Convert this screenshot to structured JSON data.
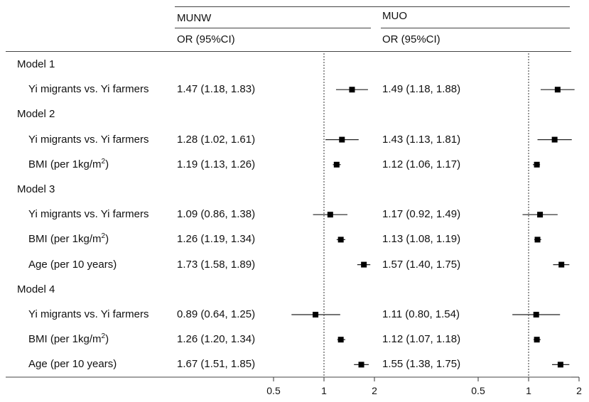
{
  "header": {
    "col1_title": "MUNW",
    "col2_title": "MUO",
    "col1_subtitle": "OR (95%CI)",
    "col2_subtitle": "OR (95%CI)"
  },
  "rows": [
    {
      "label": "Model 1",
      "type": "model"
    },
    {
      "label": "Yi migrants vs. Yi farmers",
      "type": "var",
      "or1": "1.47 (1.18, 1.83)",
      "or2": "1.49 (1.18, 1.88)"
    },
    {
      "label": "Model 2",
      "type": "model"
    },
    {
      "label": "Yi migrants vs. Yi farmers",
      "type": "var",
      "or1": "1.28 (1.02, 1.61)",
      "or2": "1.43 (1.13, 1.81)"
    },
    {
      "label": "BMI (per 1kg/m",
      "sup": "2",
      "label_end": ")",
      "type": "var",
      "or1": "1.19 (1.13, 1.26)",
      "or2": "1.12 (1.06, 1.17)"
    },
    {
      "label": "Model 3",
      "type": "model"
    },
    {
      "label": "Yi migrants vs. Yi farmers",
      "type": "var",
      "or1": "1.09 (0.86, 1.38)",
      "or2": "1.17 (0.92, 1.49)"
    },
    {
      "label": "BMI (per 1kg/m",
      "sup": "2",
      "label_end": ")",
      "type": "var",
      "or1": "1.26 (1.19, 1.34)",
      "or2": "1.13 (1.08, 1.19)"
    },
    {
      "label": "Age (per 10 years)",
      "type": "var",
      "or1": "1.73 (1.58, 1.89)",
      "or2": "1.57 (1.40, 1.75)"
    },
    {
      "label": "Model 4",
      "type": "model"
    },
    {
      "label": "Yi migrants vs. Yi farmers",
      "type": "var",
      "or1": "0.89 (0.64, 1.25)",
      "or2": "1.11 (0.80, 1.54)"
    },
    {
      "label": "BMI (per 1kg/m",
      "sup": "2",
      "label_end": ")",
      "type": "var",
      "or1": "1.26 (1.20, 1.34)",
      "or2": "1.12 (1.07, 1.18)"
    },
    {
      "label": "Age (per 10 years)",
      "type": "var",
      "or1": "1.67 (1.51, 1.85)",
      "or2": "1.55 (1.38, 1.75)"
    }
  ],
  "chart_data": {
    "type": "scatter",
    "subtype": "forest-plot",
    "scale": "log",
    "x_ticks": [
      "0.5",
      "1",
      "2"
    ],
    "xlim": [
      0.5,
      2
    ],
    "reference_line": 1,
    "series": [
      {
        "name": "MUNW",
        "points": [
          {
            "row": 1,
            "or": 1.47,
            "lo": 1.18,
            "hi": 1.83
          },
          {
            "row": 3,
            "or": 1.28,
            "lo": 1.02,
            "hi": 1.61
          },
          {
            "row": 4,
            "or": 1.19,
            "lo": 1.13,
            "hi": 1.26
          },
          {
            "row": 6,
            "or": 1.09,
            "lo": 0.86,
            "hi": 1.38
          },
          {
            "row": 7,
            "or": 1.26,
            "lo": 1.19,
            "hi": 1.34
          },
          {
            "row": 8,
            "or": 1.73,
            "lo": 1.58,
            "hi": 1.89
          },
          {
            "row": 10,
            "or": 0.89,
            "lo": 0.64,
            "hi": 1.25
          },
          {
            "row": 11,
            "or": 1.26,
            "lo": 1.2,
            "hi": 1.34
          },
          {
            "row": 12,
            "or": 1.67,
            "lo": 1.51,
            "hi": 1.85
          }
        ]
      },
      {
        "name": "MUO",
        "points": [
          {
            "row": 1,
            "or": 1.49,
            "lo": 1.18,
            "hi": 1.88
          },
          {
            "row": 3,
            "or": 1.43,
            "lo": 1.13,
            "hi": 1.81
          },
          {
            "row": 4,
            "or": 1.12,
            "lo": 1.06,
            "hi": 1.17
          },
          {
            "row": 6,
            "or": 1.17,
            "lo": 0.92,
            "hi": 1.49
          },
          {
            "row": 7,
            "or": 1.13,
            "lo": 1.08,
            "hi": 1.19
          },
          {
            "row": 8,
            "or": 1.57,
            "lo": 1.4,
            "hi": 1.75
          },
          {
            "row": 10,
            "or": 1.11,
            "lo": 0.8,
            "hi": 1.54
          },
          {
            "row": 11,
            "or": 1.12,
            "lo": 1.07,
            "hi": 1.18
          },
          {
            "row": 12,
            "or": 1.55,
            "lo": 1.38,
            "hi": 1.75
          }
        ]
      }
    ]
  }
}
